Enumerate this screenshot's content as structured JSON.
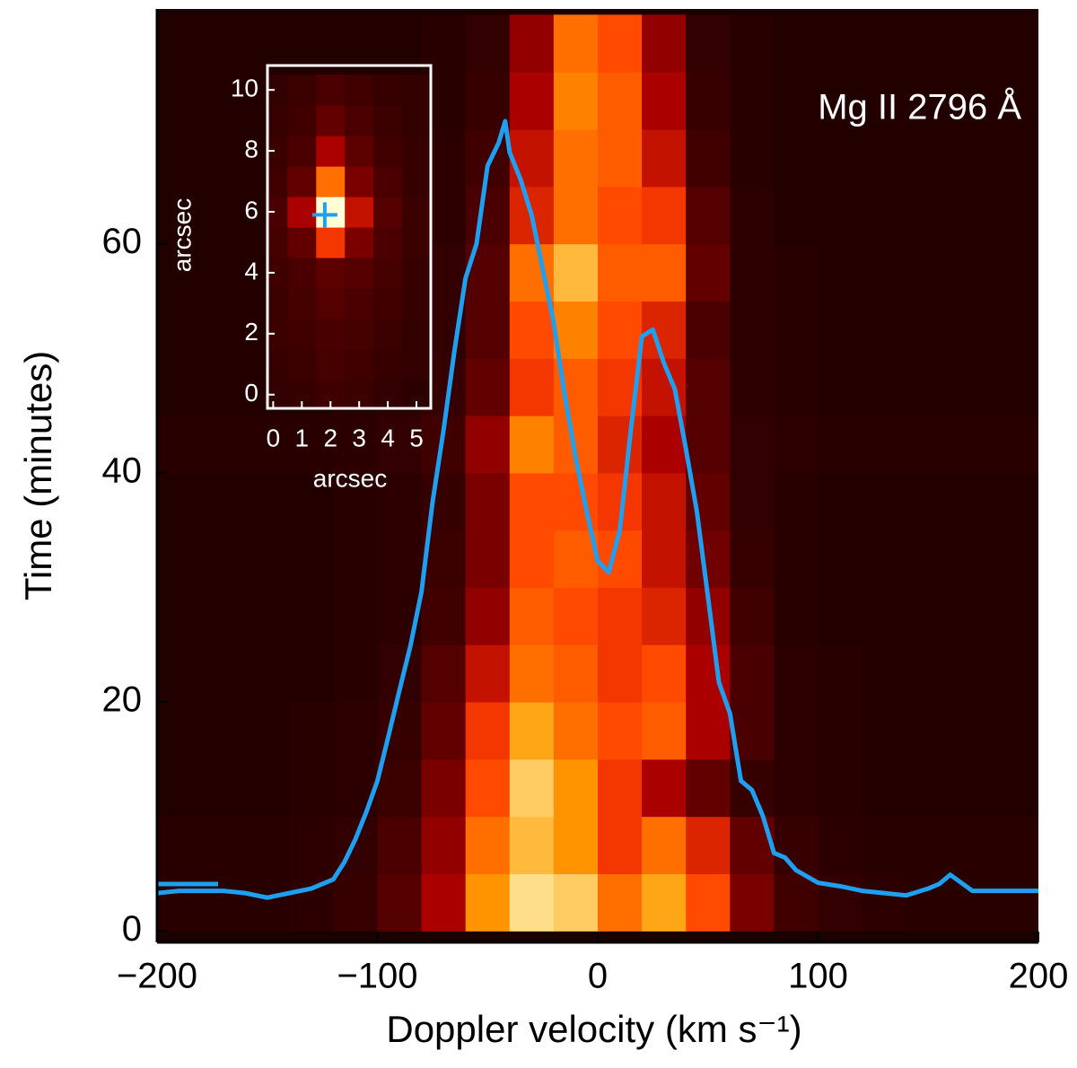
{
  "chart_data": [
    {
      "type": "heatmap",
      "annotation": "Mg II 2796 Å",
      "xlabel": "Doppler velocity (km s⁻¹)",
      "ylabel": "Time (minutes)",
      "xlim": [
        -200,
        200
      ],
      "ylim": [
        -1,
        80.5
      ],
      "xticks": [
        {
          "value": -200,
          "label": "−200"
        },
        {
          "value": -100,
          "label": "−100"
        },
        0,
        100,
        200
      ],
      "yticks": [
        0,
        20,
        40,
        60
      ],
      "x": [
        -190,
        -170,
        -150,
        -130,
        -110,
        -90,
        -70,
        -50,
        -30,
        -10,
        10,
        30,
        50,
        70,
        90,
        110,
        130,
        150,
        170,
        190
      ],
      "y": [
        2.5,
        7.5,
        12.5,
        17.5,
        22.5,
        27.5,
        32.5,
        37.5,
        42.5,
        47.5,
        52.5,
        57.5,
        62.5,
        67.5,
        72.5,
        77.5
      ],
      "z": [
        [
          0.03,
          0.03,
          0.03,
          0.04,
          0.06,
          0.12,
          0.3,
          0.7,
          0.9,
          0.85,
          0.6,
          0.75,
          0.5,
          0.2,
          0.08,
          0.05,
          0.04,
          0.03,
          0.03,
          0.03
        ],
        [
          0.03,
          0.03,
          0.03,
          0.04,
          0.05,
          0.1,
          0.25,
          0.6,
          0.8,
          0.7,
          0.45,
          0.6,
          0.4,
          0.15,
          0.06,
          0.04,
          0.03,
          0.03,
          0.03,
          0.03
        ],
        [
          0.02,
          0.02,
          0.02,
          0.03,
          0.04,
          0.07,
          0.2,
          0.5,
          0.85,
          0.7,
          0.45,
          0.3,
          0.15,
          0.06,
          0.04,
          0.03,
          0.02,
          0.02,
          0.02,
          0.02
        ],
        [
          0.02,
          0.02,
          0.02,
          0.03,
          0.04,
          0.06,
          0.15,
          0.45,
          0.75,
          0.6,
          0.5,
          0.55,
          0.3,
          0.1,
          0.04,
          0.03,
          0.02,
          0.02,
          0.02,
          0.02
        ],
        [
          0.02,
          0.02,
          0.02,
          0.02,
          0.03,
          0.05,
          0.12,
          0.35,
          0.6,
          0.55,
          0.45,
          0.5,
          0.3,
          0.1,
          0.04,
          0.03,
          0.02,
          0.02,
          0.02,
          0.02
        ],
        [
          0.02,
          0.02,
          0.02,
          0.02,
          0.03,
          0.04,
          0.08,
          0.25,
          0.55,
          0.5,
          0.45,
          0.4,
          0.25,
          0.08,
          0.03,
          0.02,
          0.02,
          0.02,
          0.02,
          0.02
        ],
        [
          0.02,
          0.02,
          0.02,
          0.02,
          0.03,
          0.04,
          0.07,
          0.2,
          0.5,
          0.55,
          0.5,
          0.35,
          0.18,
          0.06,
          0.03,
          0.02,
          0.02,
          0.02,
          0.02,
          0.02
        ],
        [
          0.02,
          0.02,
          0.02,
          0.02,
          0.03,
          0.04,
          0.06,
          0.2,
          0.5,
          0.5,
          0.45,
          0.35,
          0.15,
          0.05,
          0.03,
          0.02,
          0.02,
          0.02,
          0.02,
          0.02
        ],
        [
          0.03,
          0.03,
          0.03,
          0.03,
          0.04,
          0.05,
          0.08,
          0.25,
          0.65,
          0.55,
          0.4,
          0.3,
          0.12,
          0.05,
          0.04,
          0.03,
          0.03,
          0.03,
          0.03,
          0.03
        ],
        [
          0.02,
          0.02,
          0.02,
          0.02,
          0.03,
          0.04,
          0.06,
          0.15,
          0.45,
          0.55,
          0.45,
          0.35,
          0.12,
          0.04,
          0.03,
          0.02,
          0.02,
          0.02,
          0.02,
          0.02
        ],
        [
          0.02,
          0.02,
          0.02,
          0.02,
          0.03,
          0.03,
          0.05,
          0.12,
          0.5,
          0.65,
          0.5,
          0.4,
          0.1,
          0.04,
          0.03,
          0.02,
          0.02,
          0.02,
          0.02,
          0.02
        ],
        [
          0.02,
          0.02,
          0.02,
          0.02,
          0.02,
          0.03,
          0.05,
          0.12,
          0.6,
          0.8,
          0.55,
          0.55,
          0.15,
          0.04,
          0.03,
          0.02,
          0.02,
          0.02,
          0.02,
          0.02
        ],
        [
          0.02,
          0.02,
          0.02,
          0.02,
          0.02,
          0.03,
          0.04,
          0.1,
          0.4,
          0.6,
          0.5,
          0.45,
          0.12,
          0.04,
          0.02,
          0.02,
          0.02,
          0.02,
          0.02,
          0.02
        ],
        [
          0.02,
          0.02,
          0.02,
          0.02,
          0.02,
          0.03,
          0.04,
          0.08,
          0.35,
          0.6,
          0.55,
          0.35,
          0.08,
          0.03,
          0.02,
          0.02,
          0.02,
          0.02,
          0.02,
          0.02
        ],
        [
          0.02,
          0.02,
          0.02,
          0.02,
          0.02,
          0.02,
          0.03,
          0.06,
          0.3,
          0.65,
          0.55,
          0.3,
          0.06,
          0.03,
          0.02,
          0.02,
          0.02,
          0.02,
          0.02,
          0.02
        ],
        [
          0.02,
          0.02,
          0.02,
          0.02,
          0.02,
          0.02,
          0.03,
          0.05,
          0.25,
          0.6,
          0.5,
          0.25,
          0.05,
          0.03,
          0.02,
          0.02,
          0.02,
          0.02,
          0.02,
          0.02
        ]
      ],
      "series": [
        {
          "type": "line",
          "color": "#1f9ff0",
          "x": [
            -200,
            -190,
            -180,
            -170,
            -160,
            -150,
            -140,
            -130,
            -120,
            -115,
            -110,
            -105,
            -100,
            -95,
            -90,
            -85,
            -80,
            -75,
            -70,
            -65,
            -60,
            -55,
            -50,
            -45,
            -42,
            -40,
            -35,
            -30,
            -25,
            -20,
            -15,
            -10,
            -5,
            0,
            5,
            10,
            15,
            20,
            25,
            30,
            35,
            40,
            45,
            50,
            55,
            60,
            65,
            70,
            75,
            80,
            85,
            90,
            100,
            110,
            120,
            130,
            140,
            150,
            155,
            160,
            165,
            170,
            180,
            190,
            200
          ],
          "values": [
            3.3,
            3.5,
            3.5,
            3.5,
            3.3,
            2.9,
            3.3,
            3.7,
            4.5,
            6,
            8,
            10.4,
            13.1,
            17,
            21,
            24.9,
            29.6,
            37.4,
            43.7,
            50.7,
            57,
            60,
            66.8,
            68.8,
            70.7,
            68,
            65.6,
            62.5,
            57.8,
            53.1,
            46.8,
            41.3,
            36.6,
            32.3,
            31.3,
            35,
            43.7,
            51.9,
            52.5,
            49.6,
            47.3,
            42.1,
            36.6,
            29.2,
            21.7,
            19,
            13.1,
            12.3,
            10,
            6.8,
            6.4,
            5.3,
            4.2,
            3.9,
            3.5,
            3.3,
            3.1,
            3.7,
            4.1,
            4.9,
            4.2,
            3.5,
            3.5,
            3.5,
            3.5
          ]
        }
      ]
    },
    {
      "type": "heatmap",
      "xlabel": "arcsec",
      "ylabel": "arcsec",
      "xlim": [
        -0.2,
        5.5
      ],
      "ylim": [
        -0.45,
        10.8
      ],
      "xticks": [
        0,
        1,
        2,
        3,
        4,
        5
      ],
      "yticks": [
        0,
        2,
        4,
        6,
        8,
        10
      ],
      "x": [
        0,
        1,
        2,
        3,
        4,
        5
      ],
      "y": [
        0,
        1,
        2,
        3,
        4,
        5,
        6,
        7,
        8,
        9,
        10
      ],
      "z": [
        [
          0.05,
          0.06,
          0.08,
          0.07,
          0.05,
          0.04
        ],
        [
          0.06,
          0.07,
          0.09,
          0.08,
          0.06,
          0.05
        ],
        [
          0.07,
          0.08,
          0.1,
          0.09,
          0.07,
          0.05
        ],
        [
          0.07,
          0.09,
          0.12,
          0.1,
          0.08,
          0.06
        ],
        [
          0.08,
          0.1,
          0.14,
          0.12,
          0.09,
          0.06
        ],
        [
          0.09,
          0.15,
          0.45,
          0.2,
          0.1,
          0.07
        ],
        [
          0.1,
          0.3,
          1.0,
          0.35,
          0.12,
          0.07
        ],
        [
          0.08,
          0.15,
          0.6,
          0.2,
          0.1,
          0.06
        ],
        [
          0.07,
          0.1,
          0.3,
          0.14,
          0.08,
          0.06
        ],
        [
          0.06,
          0.08,
          0.15,
          0.1,
          0.07,
          0.05
        ],
        [
          0.05,
          0.07,
          0.1,
          0.08,
          0.06,
          0.05
        ]
      ],
      "marker": {
        "x": 1.8,
        "y": 5.9,
        "color": "#1f9ff0"
      }
    }
  ]
}
